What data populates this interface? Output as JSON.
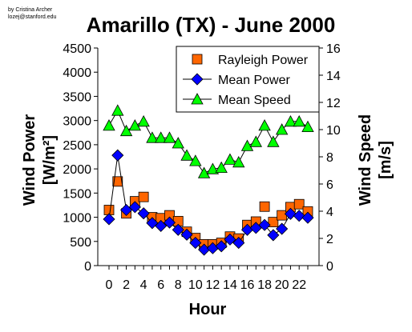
{
  "credit": {
    "line1": "by Cristina Archer",
    "line2": "lozej@stanford.edu"
  },
  "chart_data": {
    "type": "line",
    "title": "Amarillo (TX) - June 2000",
    "xlabel": "Hour",
    "ylabel_left": "Wind Power",
    "ylabel_left_units": "[W/m²]",
    "ylabel_right": "Wind Speed",
    "ylabel_right_units": "[m/s]",
    "grid": false,
    "legend_position": "top-right",
    "x": [
      0,
      1,
      2,
      3,
      4,
      5,
      6,
      7,
      8,
      9,
      10,
      11,
      12,
      13,
      14,
      15,
      16,
      17,
      18,
      19,
      20,
      21,
      22,
      23
    ],
    "x_tick_labels": [
      "0",
      "2",
      "4",
      "6",
      "8",
      "10",
      "12",
      "14",
      "16",
      "18",
      "20",
      "22"
    ],
    "y_left_ticks": [
      "0",
      "500",
      "1000",
      "1500",
      "2000",
      "2500",
      "3000",
      "3500",
      "4000",
      "4500"
    ],
    "y_left_range": [
      0,
      4500
    ],
    "y_right_ticks": [
      "0",
      "2",
      "4",
      "6",
      "8",
      "10",
      "12",
      "14",
      "16"
    ],
    "y_right_range": [
      0,
      16
    ],
    "series": [
      {
        "name": "Rayleigh Power",
        "axis": "left",
        "marker": "square",
        "color": "#ff6600",
        "line": false,
        "values": [
          1150,
          1740,
          1080,
          1330,
          1420,
          1000,
          980,
          1040,
          920,
          700,
          570,
          440,
          440,
          470,
          600,
          560,
          840,
          910,
          1220,
          900,
          1040,
          1210,
          1270,
          1120
        ]
      },
      {
        "name": "Mean Power",
        "axis": "left",
        "marker": "diamond",
        "color": "#0000ff",
        "line": true,
        "values": [
          960,
          2280,
          1150,
          1210,
          1080,
          880,
          820,
          890,
          740,
          640,
          470,
          330,
          360,
          400,
          540,
          470,
          740,
          780,
          840,
          630,
          760,
          1070,
          1030,
          990
        ]
      },
      {
        "name": "Mean Speed",
        "axis": "right",
        "marker": "triangle",
        "color": "#00ff00",
        "line": true,
        "values": [
          10.3,
          11.4,
          9.9,
          10.3,
          10.6,
          9.4,
          9.4,
          9.4,
          9.0,
          8.1,
          7.7,
          6.8,
          7.1,
          7.2,
          7.8,
          7.6,
          8.8,
          9.1,
          10.3,
          9.1,
          10.0,
          10.6,
          10.6,
          10.2
        ]
      }
    ]
  }
}
